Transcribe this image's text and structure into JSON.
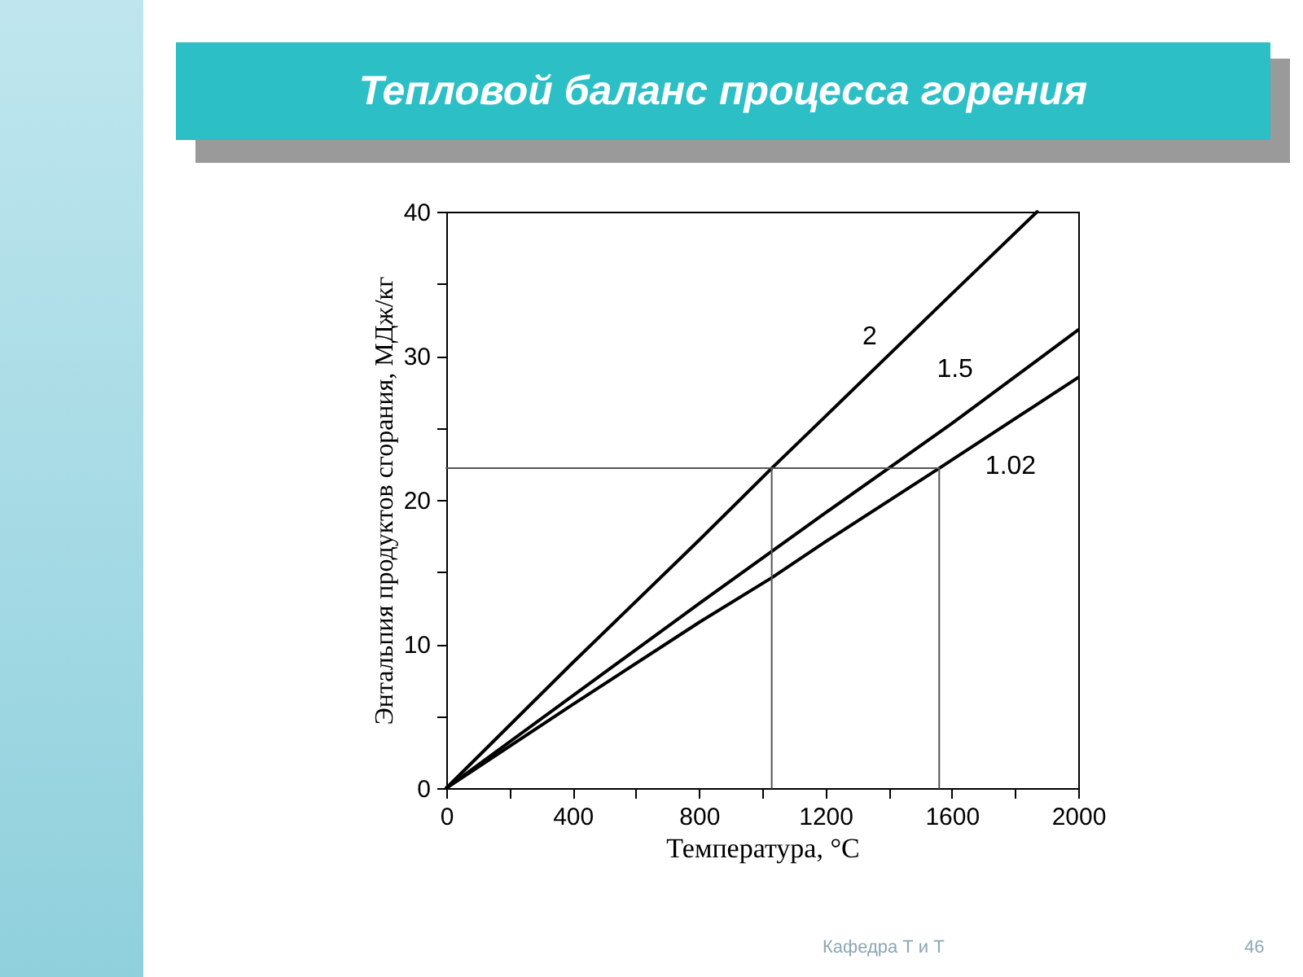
{
  "chart_data": {
    "type": "line",
    "title": "Тепловой баланс процесса горения",
    "xlabel": "Температура, °C",
    "ylabel": "Энтальпия продуктов сгорания, МДж/кг",
    "xlim": [
      0,
      2000
    ],
    "ylim": [
      0,
      40
    ],
    "xticks": [
      0,
      {
        "value": 200,
        "label": null
      },
      400,
      {
        "value": 600,
        "label": null
      },
      800,
      {
        "value": 1000,
        "label": null
      },
      1200,
      {
        "value": 1400,
        "label": null
      },
      1600,
      {
        "value": 1800,
        "label": null
      },
      2000
    ],
    "yticks": [
      0,
      {
        "value": 5,
        "label": null
      },
      10,
      {
        "value": 15,
        "label": null
      },
      20,
      {
        "value": 25,
        "label": null
      },
      30,
      {
        "value": 35,
        "label": null
      },
      40
    ],
    "grid": false,
    "legend": false,
    "marker": "none",
    "series": [
      {
        "name": "2",
        "color": "#000000",
        "x": [
          0,
          400,
          800,
          1030,
          1200,
          1600,
          1870
        ],
        "values": [
          0,
          8.7,
          17.2,
          22.2,
          25.8,
          34.3,
          40
        ]
      },
      {
        "name": "1.5",
        "color": "#000000",
        "x": [
          0,
          400,
          800,
          1200,
          1400,
          1600,
          2000
        ],
        "values": [
          0,
          6.4,
          12.8,
          19.1,
          22.2,
          25.3,
          31.8
        ]
      },
      {
        "name": "1.02",
        "color": "#000000",
        "x": [
          0,
          400,
          800,
          1030,
          1200,
          1560,
          2000
        ],
        "values": [
          0,
          5.8,
          11.5,
          14.6,
          17.1,
          22.2,
          28.5
        ]
      },
      {
        "color": "#555555",
        "x": [
          0,
          1560
        ],
        "values": [
          22.2,
          22.2
        ]
      },
      {
        "color": "#555555",
        "x": [
          1030,
          1030
        ],
        "values": [
          22.2,
          0
        ]
      },
      {
        "color": "#555555",
        "x": [
          1560,
          1560
        ],
        "values": [
          22.2,
          0
        ]
      }
    ],
    "annotations": [
      "Кафедра Т и Т",
      "46"
    ]
  }
}
